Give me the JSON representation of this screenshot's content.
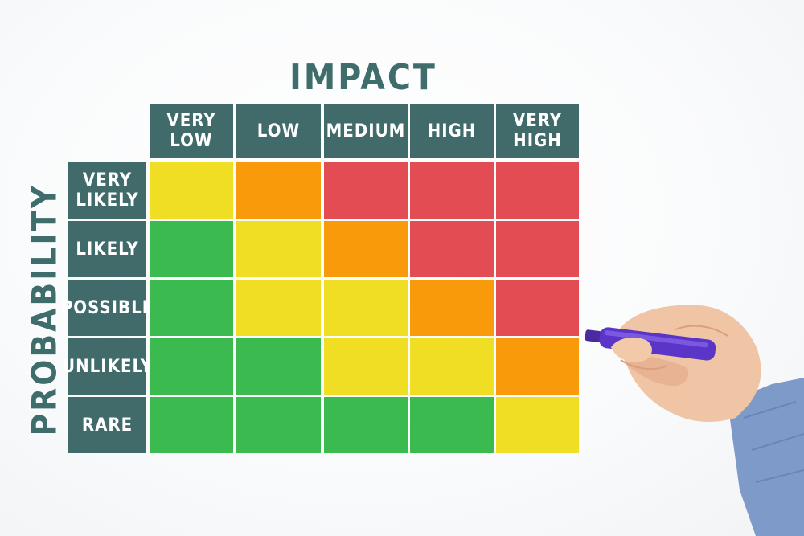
{
  "titles": {
    "impact": "IMPACT",
    "probability": "PROBABILITY"
  },
  "columns": [
    "Very Low",
    "Low",
    "Medium",
    "High",
    "Very High"
  ],
  "rows": [
    "Very Likely",
    "Likely",
    "Possible",
    "Unlikely",
    "Rare"
  ],
  "colors": {
    "header": "#416b6b",
    "green": "#3aba4f",
    "yellow": "#efde23",
    "orange": "#f99a0a",
    "red": "#e24c52"
  },
  "matrix": [
    [
      "yellow",
      "orange",
      "red",
      "red",
      "red"
    ],
    [
      "green",
      "yellow",
      "orange",
      "red",
      "red"
    ],
    [
      "green",
      "yellow",
      "yellow",
      "orange",
      "red"
    ],
    [
      "green",
      "green",
      "yellow",
      "yellow",
      "orange"
    ],
    [
      "green",
      "green",
      "green",
      "green",
      "yellow"
    ]
  ]
}
